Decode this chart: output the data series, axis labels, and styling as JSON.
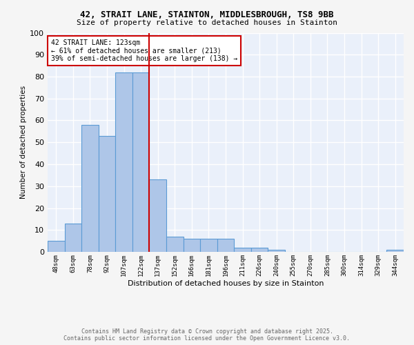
{
  "title_line1": "42, STRAIT LANE, STAINTON, MIDDLESBROUGH, TS8 9BB",
  "title_line2": "Size of property relative to detached houses in Stainton",
  "xlabel": "Distribution of detached houses by size in Stainton",
  "ylabel": "Number of detached properties",
  "bar_labels": [
    "48sqm",
    "63sqm",
    "78sqm",
    "92sqm",
    "107sqm",
    "122sqm",
    "137sqm",
    "152sqm",
    "166sqm",
    "181sqm",
    "196sqm",
    "211sqm",
    "226sqm",
    "240sqm",
    "255sqm",
    "270sqm",
    "285sqm",
    "300sqm",
    "314sqm",
    "329sqm",
    "344sqm"
  ],
  "bar_values": [
    5,
    13,
    58,
    53,
    82,
    82,
    33,
    7,
    6,
    6,
    6,
    2,
    2,
    1,
    0,
    0,
    0,
    0,
    0,
    0,
    1
  ],
  "bar_color": "#aec6e8",
  "bar_edge_color": "#5b9bd5",
  "vline_x": 5.5,
  "vline_color": "#cc0000",
  "annotation_text": "42 STRAIT LANE: 123sqm\n← 61% of detached houses are smaller (213)\n39% of semi-detached houses are larger (138) →",
  "annotation_box_color": "#ffffff",
  "annotation_border_color": "#cc0000",
  "ylim": [
    0,
    100
  ],
  "yticks": [
    0,
    10,
    20,
    30,
    40,
    50,
    60,
    70,
    80,
    90,
    100
  ],
  "bg_color": "#eaf0fa",
  "grid_color": "#ffffff",
  "footer_line1": "Contains HM Land Registry data © Crown copyright and database right 2025.",
  "footer_line2": "Contains public sector information licensed under the Open Government Licence v3.0.",
  "footer_color": "#666666",
  "fig_bg_color": "#f5f5f5"
}
